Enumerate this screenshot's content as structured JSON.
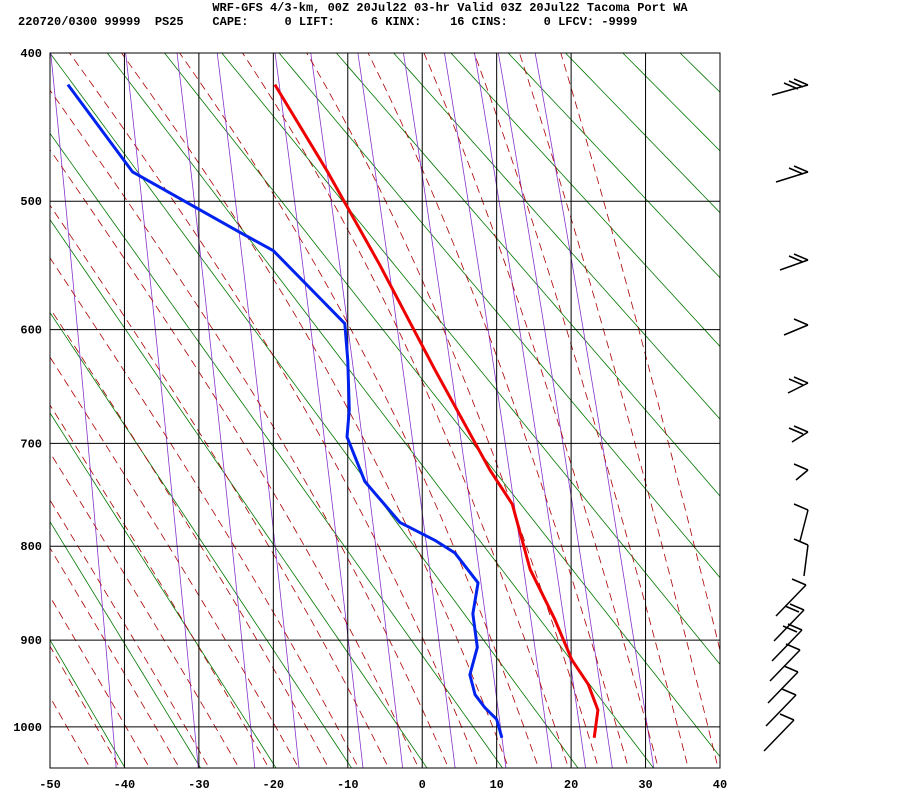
{
  "chart_data": {
    "type": "line",
    "title": "WRF-GFS 4/3-km, 00Z 20Jul22 03-hr Valid 03Z 20Jul22 Tacoma Port WA",
    "subtitle": "220720/0300 99999  PS25    CAPE:     0 LIFT:     6 KINX:    16 CINS:     0 LFCV: -9999",
    "xlim": [
      -50,
      40
    ],
    "xticks": [
      -50,
      -40,
      -30,
      -20,
      -10,
      0,
      10,
      20,
      30,
      40
    ],
    "ylim": [
      400,
      1050
    ],
    "yticks": [
      400,
      500,
      600,
      700,
      800,
      900,
      1000
    ],
    "grid": true,
    "series": [
      {
        "color": "#ee0000",
        "x": [
          -19.8,
          -12.7,
          -5.7,
          1.7,
          9.1,
          12.1,
          14.5,
          17.8,
          20.1,
          22.3,
          23.6,
          23.1
        ],
        "y": [
          420,
          479,
          548,
          634,
          725,
          758,
          824,
          877,
          922,
          950,
          980,
          1013
        ]
      },
      {
        "color": "#0022ee",
        "x": [
          -47.6,
          -38.9,
          -24.5,
          -20.0,
          -10.4,
          -10.0,
          -9.8,
          -10.1,
          -7.7,
          -3.0,
          1.7,
          4.4,
          7.5,
          6.8,
          7.4,
          6.4,
          7.1,
          8.4,
          10.0,
          10.7
        ],
        "y": [
          420,
          479,
          523,
          537,
          595,
          626,
          669,
          694,
          736,
          776,
          794,
          807,
          838,
          871,
          908,
          939,
          962,
          977,
          991,
          1013
        ]
      }
    ]
  }
}
